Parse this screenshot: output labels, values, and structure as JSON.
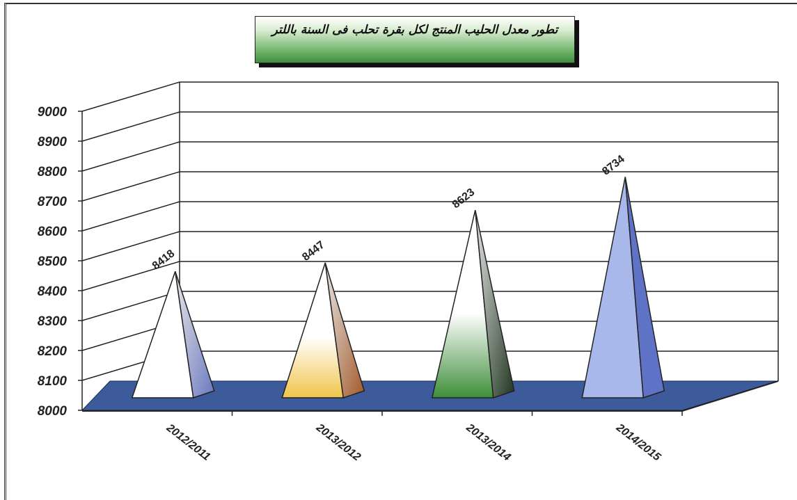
{
  "chart_data": {
    "type": "bar",
    "title": "تطور معدل الحليب المنتج لكل بقرة تحلب فى السنة باللتر",
    "categories": [
      "2012/2011",
      "2013/2012",
      "2013/2014",
      "2014/2015"
    ],
    "values": [
      8418,
      8447,
      8623,
      8734
    ],
    "ylim": [
      8000,
      9000
    ],
    "yticks": [
      8000,
      8100,
      8200,
      8300,
      8400,
      8500,
      8600,
      8700,
      8800,
      8900,
      9000
    ],
    "grid": true,
    "xlabel": "",
    "ylabel": "",
    "bar_shape": "pyramid-3d",
    "colors": [
      {
        "light": "#ffffff",
        "dark": "#7f8ec8",
        "side": "#6b79c0"
      },
      {
        "light": "#f1c44a",
        "dark": "#8a4a2a",
        "side": "#a35a2a"
      },
      {
        "light": "#3e8e3a",
        "dark": "#1f3f1f",
        "side": "#203520"
      },
      {
        "light": "#a9b8ea",
        "dark": "#5f73c6",
        "side": "#4a5fb8"
      }
    ],
    "floor_color": "#3d5a9a"
  }
}
